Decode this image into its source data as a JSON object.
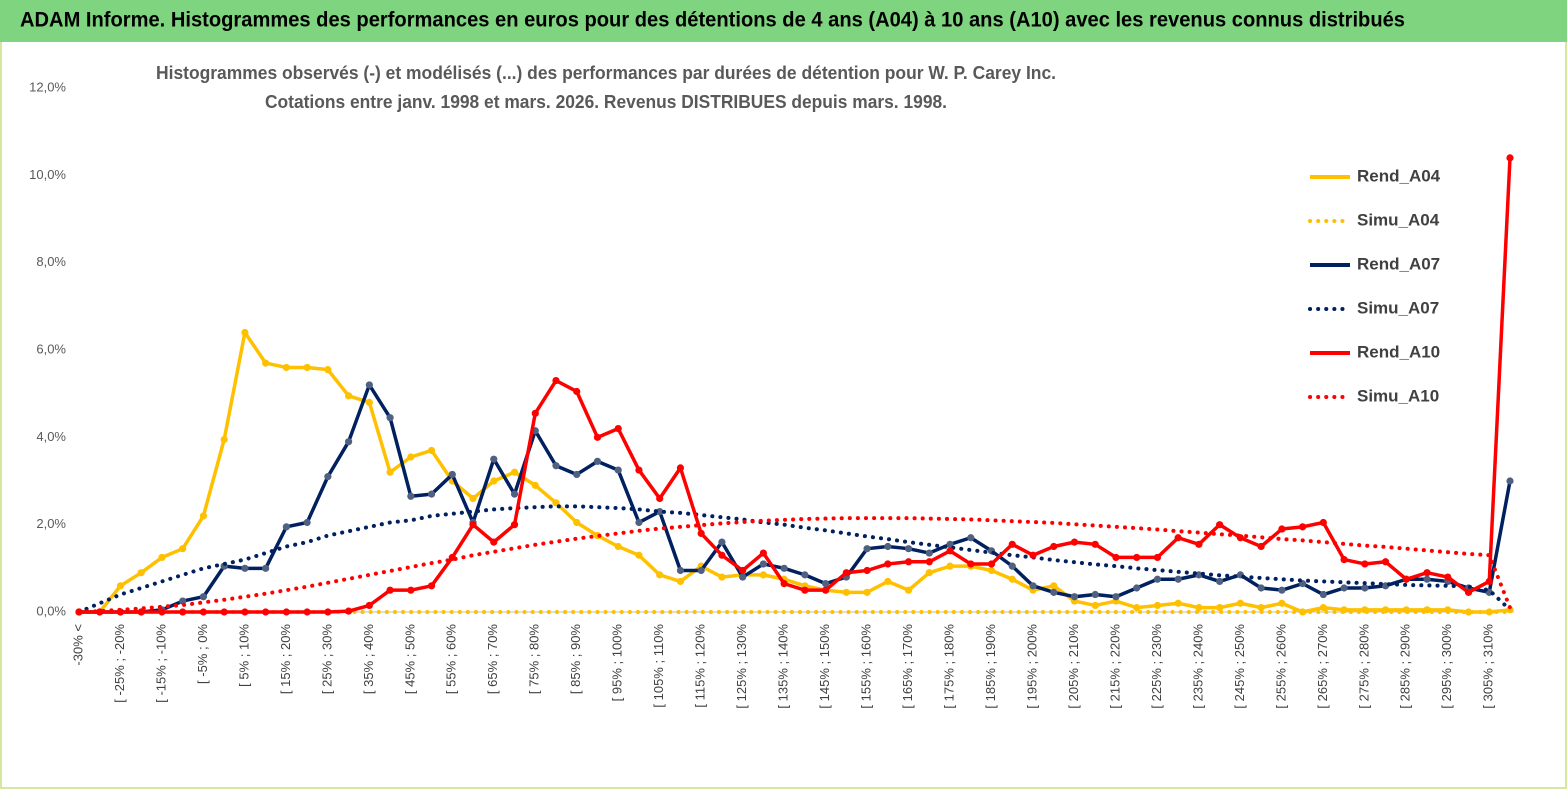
{
  "chart_data": {
    "type": "line",
    "title": "ADAM Informe. Histogrammes des performances en euros pour des détentions de 4 ans (A04) à 10 ans (A10) avec les revenus connus distribués",
    "subtitle": [
      "Histogrammes observés (-) et modélisés (...) des performances par durées de détention pour W. P. Carey Inc.",
      "Cotations entre janv. 1998 et mars. 2026. Revenus DISTRIBUES depuis mars. 1998."
    ],
    "categories": [
      "-30% <",
      null,
      "[ -25% ; -20%",
      null,
      "[ -15% ; -10%",
      null,
      "[ -5% ; 0%",
      null,
      "[ 5% ; 10%",
      null,
      "[ 15% ; 20%",
      null,
      "[ 25% ; 30%",
      null,
      "[ 35% ; 40%",
      null,
      "[ 45% ; 50%",
      null,
      "[ 55% ; 60%",
      null,
      "[ 65% ; 70%",
      null,
      "[ 75% ; 80%",
      null,
      "[ 85% ; 90%",
      null,
      "[ 95% ; 100%",
      null,
      "[ 105% ; 110%",
      null,
      "[ 115% ; 120%",
      null,
      "[ 125% ; 130%",
      null,
      "[ 135% ; 140%",
      null,
      "[ 145% ; 150%",
      null,
      "[ 155% ; 160%",
      null,
      "[ 165% ; 170%",
      null,
      "[ 175% ; 180%",
      null,
      "[ 185% ; 190%",
      null,
      "[ 195% ; 200%",
      null,
      "[ 205% ; 210%",
      null,
      "[ 215% ; 220%",
      null,
      "[ 225% ; 230%",
      null,
      "[ 235% ; 240%",
      null,
      "[ 245% ; 250%",
      null,
      "[ 255% ; 260%",
      null,
      "[ 265% ; 270%",
      null,
      "[ 275% ; 280%",
      null,
      "[ 285% ; 290%",
      null,
      "[ 295% ; 300%",
      null,
      "[ 305% ; 310%",
      null
    ],
    "ylim": [
      0,
      12
    ],
    "yticks": [
      {
        "value": 0,
        "label": "0,0%"
      },
      {
        "value": 2,
        "label": "2,0%"
      },
      {
        "value": 4,
        "label": "4,0%"
      },
      {
        "value": 6,
        "label": "6,0%"
      },
      {
        "value": 8,
        "label": "8,0%"
      },
      {
        "value": 10,
        "label": "10,0%"
      },
      {
        "value": 12,
        "label": "12,0%"
      }
    ],
    "legend": "right",
    "series": [
      {
        "name": "Rend_A04",
        "color": "#ffc000",
        "dotted": false,
        "marker_color": "#ffc000",
        "values": [
          0,
          0,
          0.6,
          0.9,
          1.25,
          1.45,
          2.2,
          3.95,
          6.4,
          5.7,
          5.6,
          5.6,
          5.55,
          4.95,
          4.8,
          3.2,
          3.55,
          3.7,
          3.0,
          2.6,
          3.0,
          3.2,
          2.9,
          2.5,
          2.05,
          1.75,
          1.5,
          1.3,
          0.85,
          0.7,
          1.05,
          0.8,
          0.85,
          0.85,
          0.75,
          0.6,
          0.5,
          0.45,
          0.45,
          0.7,
          0.5,
          0.9,
          1.05,
          1.05,
          0.95,
          0.75,
          0.5,
          0.6,
          0.25,
          0.15,
          0.25,
          0.1,
          0.15,
          0.2,
          0.1,
          0.1,
          0.2,
          0.1,
          0.2,
          0,
          0.1,
          0.05,
          0.05,
          0.05,
          0.05,
          0.05,
          0.05,
          0,
          0,
          0.05
        ]
      },
      {
        "name": "Simu_A04",
        "color": "#ffc000",
        "dotted": true,
        "values": [
          0,
          0,
          0,
          0,
          0,
          0,
          0,
          0,
          0,
          0,
          0,
          0,
          0,
          0,
          0,
          0,
          0,
          0,
          0,
          0,
          0,
          0,
          0,
          0,
          0,
          0,
          0,
          0,
          0,
          0,
          0,
          0,
          0,
          0,
          0,
          0,
          0,
          0,
          0,
          0,
          0,
          0,
          0,
          0,
          0,
          0,
          0,
          0,
          0,
          0,
          0,
          0,
          0,
          0,
          0,
          0,
          0,
          0,
          0,
          0,
          0,
          0,
          0,
          0,
          0,
          0,
          0,
          0,
          0,
          0
        ]
      },
      {
        "name": "Rend_A07",
        "color": "#002060",
        "dotted": false,
        "marker_color": "#4f6080",
        "values": [
          0,
          0,
          0,
          0,
          0.05,
          0.25,
          0.35,
          1.05,
          1.0,
          1.0,
          1.95,
          2.05,
          3.1,
          3.9,
          5.2,
          4.45,
          2.65,
          2.7,
          3.15,
          2.05,
          3.5,
          2.7,
          4.15,
          3.35,
          3.15,
          3.45,
          3.25,
          2.05,
          2.3,
          0.95,
          0.95,
          1.6,
          0.8,
          1.1,
          1.0,
          0.85,
          0.65,
          0.8,
          1.45,
          1.5,
          1.45,
          1.35,
          1.55,
          1.7,
          1.4,
          1.05,
          0.6,
          0.45,
          0.35,
          0.4,
          0.35,
          0.55,
          0.75,
          0.75,
          0.85,
          0.7,
          0.85,
          0.55,
          0.5,
          0.65,
          0.4,
          0.55,
          0.55,
          0.6,
          0.75,
          0.75,
          0.7,
          0.55,
          0.45,
          3.0
        ]
      },
      {
        "name": "Simu_A07",
        "color": "#002060",
        "dotted": true,
        "values": [
          0,
          0.2,
          0.4,
          0.55,
          0.7,
          0.85,
          1.0,
          1.1,
          1.2,
          1.35,
          1.5,
          1.6,
          1.75,
          1.85,
          1.95,
          2.05,
          2.1,
          2.2,
          2.25,
          2.3,
          2.35,
          2.38,
          2.4,
          2.42,
          2.42,
          2.4,
          2.38,
          2.35,
          2.3,
          2.27,
          2.22,
          2.17,
          2.12,
          2.05,
          2.0,
          1.93,
          1.87,
          1.8,
          1.73,
          1.67,
          1.6,
          1.54,
          1.48,
          1.42,
          1.36,
          1.3,
          1.25,
          1.19,
          1.14,
          1.09,
          1.05,
          1.0,
          0.96,
          0.92,
          0.88,
          0.84,
          0.81,
          0.78,
          0.75,
          0.72,
          0.7,
          0.68,
          0.66,
          0.64,
          0.62,
          0.61,
          0.6,
          0.58,
          0.5,
          0.05
        ]
      },
      {
        "name": "Rend_A10",
        "color": "#ff0000",
        "dotted": false,
        "marker_color": "#ff0000",
        "values": [
          0,
          0,
          0,
          0,
          0,
          0,
          0,
          0,
          0,
          0,
          0,
          0,
          0,
          0.02,
          0.15,
          0.5,
          0.5,
          0.6,
          1.25,
          2.0,
          1.6,
          2.0,
          4.55,
          5.3,
          5.05,
          4.0,
          4.2,
          3.25,
          2.6,
          3.3,
          1.8,
          1.3,
          0.95,
          1.35,
          0.65,
          0.5,
          0.5,
          0.9,
          0.95,
          1.1,
          1.15,
          1.15,
          1.4,
          1.1,
          1.1,
          1.55,
          1.3,
          1.5,
          1.6,
          1.55,
          1.25,
          1.25,
          1.25,
          1.7,
          1.55,
          2.0,
          1.7,
          1.5,
          1.9,
          1.95,
          2.05,
          1.2,
          1.1,
          1.15,
          0.75,
          0.9,
          0.8,
          0.45,
          0.7,
          10.4
        ]
      },
      {
        "name": "Simu_A10",
        "color": "#ff0000",
        "dotted": true,
        "values": [
          0,
          0.02,
          0.05,
          0.08,
          0.12,
          0.16,
          0.22,
          0.28,
          0.35,
          0.42,
          0.5,
          0.58,
          0.67,
          0.76,
          0.85,
          0.94,
          1.03,
          1.12,
          1.2,
          1.3,
          1.38,
          1.46,
          1.54,
          1.61,
          1.68,
          1.74,
          1.8,
          1.86,
          1.91,
          1.95,
          1.99,
          2.03,
          2.06,
          2.09,
          2.11,
          2.13,
          2.14,
          2.15,
          2.15,
          2.15,
          2.15,
          2.14,
          2.13,
          2.12,
          2.1,
          2.08,
          2.06,
          2.04,
          2.01,
          1.98,
          1.95,
          1.92,
          1.89,
          1.85,
          1.82,
          1.78,
          1.75,
          1.71,
          1.67,
          1.64,
          1.6,
          1.56,
          1.52,
          1.49,
          1.45,
          1.41,
          1.37,
          1.33,
          1.3,
          0.1
        ]
      }
    ]
  }
}
